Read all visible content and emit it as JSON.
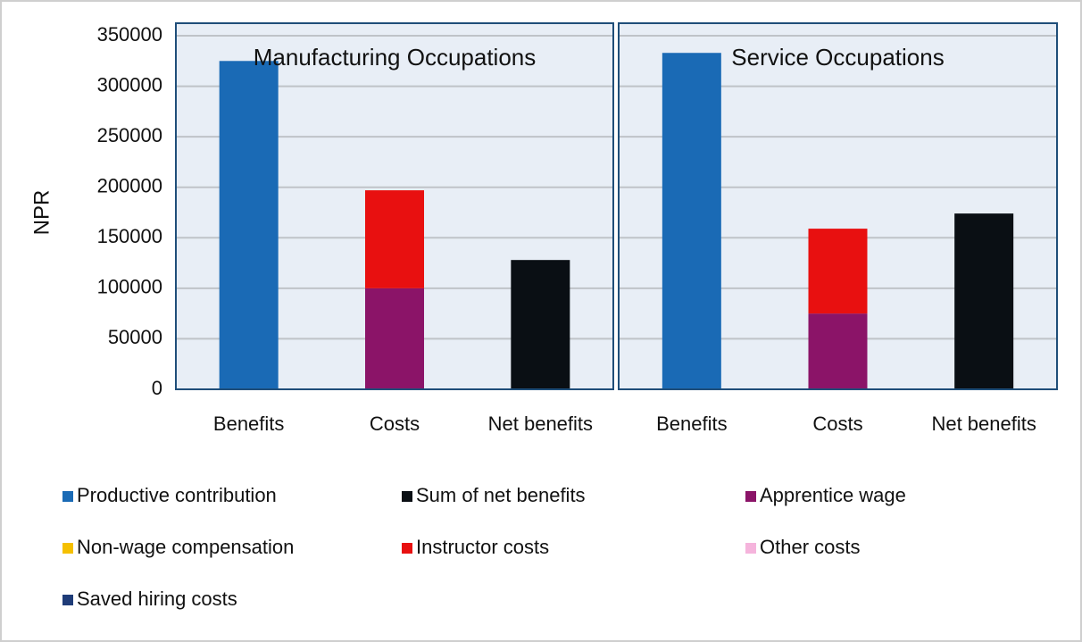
{
  "chart_data": {
    "type": "bar",
    "stacked": true,
    "ylabel": "NPR",
    "ylim": [
      0,
      350000
    ],
    "yticks": [
      0,
      50000,
      100000,
      150000,
      200000,
      250000,
      300000,
      350000
    ],
    "grid": true,
    "panels": [
      {
        "title": "Manufacturing Occupations",
        "categories": [
          "Benefits",
          "Costs",
          "Net benefits"
        ]
      },
      {
        "title": "Service Occupations",
        "categories": [
          "Benefits",
          "Costs",
          "Net benefits"
        ]
      }
    ],
    "series": [
      {
        "name": "Productive contribution",
        "color": "#1a6ab5",
        "values": [
          [
            325000,
            0,
            0
          ],
          [
            333000,
            0,
            0
          ]
        ]
      },
      {
        "name": "Sum of net benefits",
        "color": "#0a0f14",
        "values": [
          [
            0,
            0,
            128000
          ],
          [
            0,
            0,
            174000
          ]
        ]
      },
      {
        "name": "Apprentice wage",
        "color": "#8b1468",
        "values": [
          [
            0,
            100000,
            0
          ],
          [
            0,
            75000,
            0
          ]
        ]
      },
      {
        "name": "Non-wage compensation",
        "color": "#f5c000",
        "values": [
          [
            0,
            0,
            0
          ],
          [
            0,
            0,
            0
          ]
        ]
      },
      {
        "name": "Instructor costs",
        "color": "#e81010",
        "values": [
          [
            0,
            97000,
            0
          ],
          [
            0,
            84000,
            0
          ]
        ]
      },
      {
        "name": "Other costs",
        "color": "#f5b4dc",
        "values": [
          [
            0,
            0,
            0
          ],
          [
            0,
            0,
            0
          ]
        ]
      },
      {
        "name": "Saved hiring costs",
        "color": "#1f3c78",
        "values": [
          [
            0,
            0,
            0
          ],
          [
            0,
            0,
            0
          ]
        ]
      }
    ]
  }
}
